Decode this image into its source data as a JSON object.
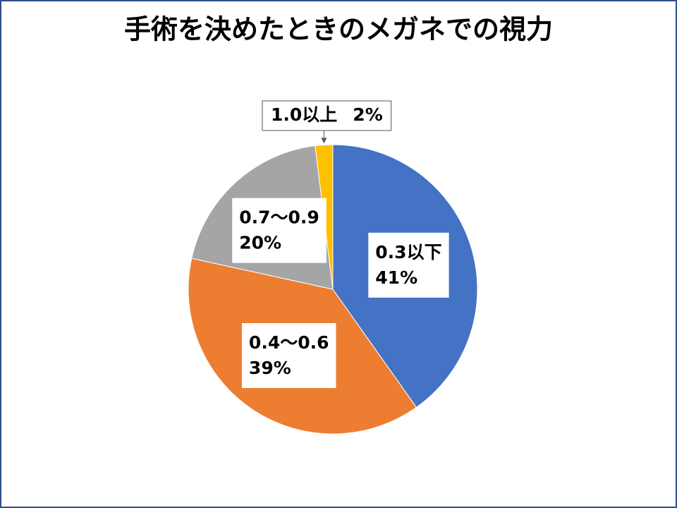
{
  "chart_data": {
    "type": "pie",
    "title": "手術を決めたときのメガネでの視力",
    "categories": [
      "0.3以下",
      "0.4～0.6",
      "0.7～0.9",
      "1.0以上"
    ],
    "values": [
      41,
      39,
      20,
      2
    ],
    "value_labels": [
      "41%",
      "39%",
      "20%",
      "2%"
    ],
    "colors": [
      "#4472c4",
      "#ed7d31",
      "#a5a5a5",
      "#ffc000"
    ]
  }
}
